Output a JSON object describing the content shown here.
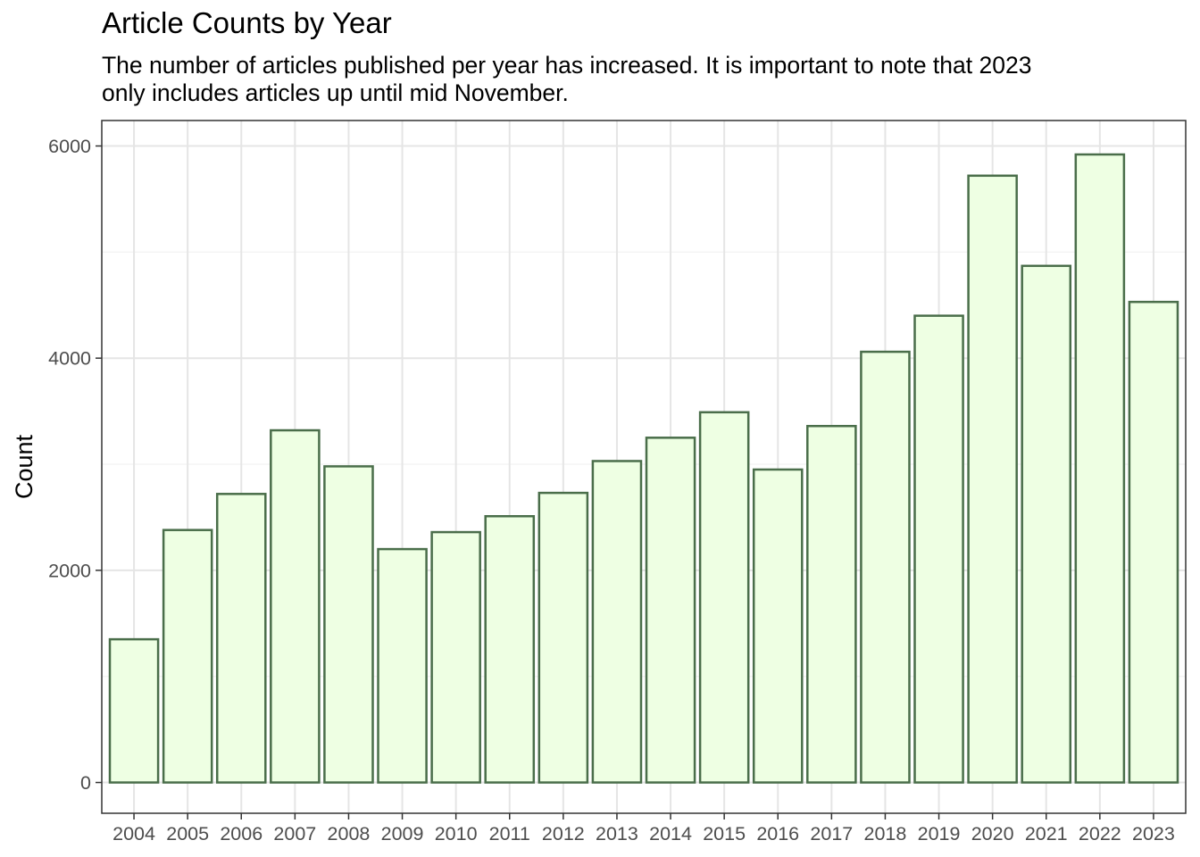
{
  "chart_data": {
    "type": "bar",
    "title": "Article Counts by Year",
    "subtitle": "The number of articles published per year has increased. It is important to note that 2023\n only includes articles up until mid November.",
    "xlabel": "",
    "ylabel": "Count",
    "categories": [
      "2004",
      "2005",
      "2006",
      "2007",
      "2008",
      "2009",
      "2010",
      "2011",
      "2012",
      "2013",
      "2014",
      "2015",
      "2016",
      "2017",
      "2018",
      "2019",
      "2020",
      "2021",
      "2022",
      "2023"
    ],
    "values": [
      1350,
      2380,
      2720,
      3320,
      2980,
      2200,
      2360,
      2510,
      2730,
      3030,
      3250,
      3490,
      2950,
      3360,
      4060,
      4400,
      5720,
      4870,
      5920,
      4530
    ],
    "ylim": [
      -290,
      6240
    ],
    "yticks": [
      0,
      2000,
      4000,
      6000
    ],
    "ytick_labels": [
      "0",
      "2000",
      "4000",
      "6000"
    ],
    "grid": true,
    "legend": "none",
    "colors": {
      "bar_fill": "#eeffe3",
      "bar_stroke": "#4a6e4a",
      "grid_major": "#e5e5e5",
      "grid_minor": "#f2f2f2",
      "panel_border": "#333333",
      "tick_color": "#333333"
    }
  }
}
